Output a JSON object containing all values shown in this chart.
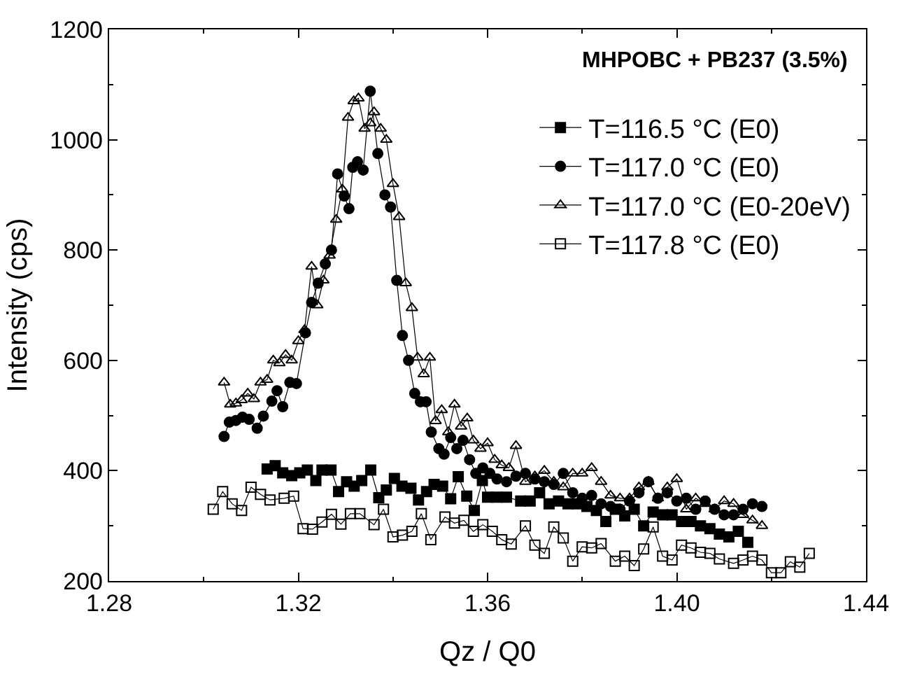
{
  "chart_data": {
    "type": "line",
    "xlabel": "Qz / Q0",
    "ylabel": "Intensity (cps)",
    "annotations": [
      "MHPOBC + PB237 (3.5%)"
    ],
    "xlim": [
      1.28,
      1.44
    ],
    "xticks": [
      {
        "value": 1.28,
        "label": "1.28"
      },
      {
        "value": 1.32,
        "label": "1.32"
      },
      {
        "value": 1.36,
        "label": "1.36"
      },
      {
        "value": 1.4,
        "label": "1.40"
      },
      {
        "value": 1.44,
        "label": "1.44"
      }
    ],
    "ylim": [
      200,
      1200
    ],
    "yticks": [
      200,
      400,
      600,
      800,
      1000,
      1200
    ],
    "legend": "top right",
    "line_style": "solid",
    "series": [
      {
        "name": "T=116.5 °C (E0)",
        "color": "#000000",
        "marker": "square",
        "x": [
          1.3134,
          1.3151,
          1.3167,
          1.3186,
          1.3203,
          1.3219,
          1.3237,
          1.325,
          1.3269,
          1.3285,
          1.3302,
          1.3318,
          1.3334,
          1.3353,
          1.337,
          1.3386,
          1.3403,
          1.3419,
          1.3438,
          1.3454,
          1.3471,
          1.3487,
          1.3505,
          1.3522,
          1.3538,
          1.3556,
          1.3572,
          1.3589,
          1.36,
          1.362,
          1.364,
          1.367,
          1.369,
          1.371,
          1.373,
          1.375,
          1.377,
          1.379,
          1.381,
          1.383,
          1.385,
          1.387,
          1.389,
          1.391,
          1.393,
          1.395,
          1.397,
          1.399,
          1.401,
          1.403,
          1.405,
          1.407,
          1.409,
          1.411,
          1.413,
          1.415
        ],
        "values": [
          403,
          409,
          396,
          391,
          396,
          401,
          382,
          401,
          401,
          362,
          380,
          372,
          382,
          401,
          351,
          365,
          386,
          372,
          368,
          347,
          362,
          375,
          372,
          349,
          389,
          354,
          328,
          382,
          352,
          352,
          352,
          345,
          345,
          360,
          340,
          345,
          340,
          340,
          335,
          328,
          308,
          330,
          318,
          330,
          300,
          325,
          320,
          320,
          308,
          308,
          300,
          295,
          285,
          280,
          290,
          270
        ]
      },
      {
        "name": "T=117.0 °C (E0)",
        "color": "#000000",
        "marker": "circle",
        "x": [
          1.3043,
          1.3054,
          1.3068,
          1.3082,
          1.3096,
          1.3113,
          1.3126,
          1.3144,
          1.3155,
          1.3167,
          1.3182,
          1.3196,
          1.3215,
          1.3228,
          1.3242,
          1.3257,
          1.327,
          1.3283,
          1.3297,
          1.3307,
          1.3315,
          1.3325,
          1.3337,
          1.3352,
          1.3368,
          1.3383,
          1.3395,
          1.3408,
          1.342,
          1.3433,
          1.3446,
          1.3458,
          1.347,
          1.3481,
          1.3497,
          1.3508,
          1.3522,
          1.3535,
          1.3548,
          1.3562,
          1.3575,
          1.359,
          1.3605,
          1.362,
          1.364,
          1.366,
          1.368,
          1.37,
          1.372,
          1.374,
          1.376,
          1.378,
          1.38,
          1.382,
          1.384,
          1.386,
          1.388,
          1.39,
          1.392,
          1.394,
          1.396,
          1.398,
          1.4,
          1.402,
          1.404,
          1.406,
          1.408,
          1.41,
          1.412,
          1.414,
          1.416,
          1.418
        ],
        "values": [
          462,
          488,
          491,
          497,
          493,
          477,
          499,
          526,
          545,
          516,
          560,
          558,
          650,
          705,
          740,
          775,
          800,
          938,
          898,
          875,
          950,
          960,
          945,
          1088,
          975,
          900,
          878,
          745,
          645,
          600,
          540,
          525,
          525,
          470,
          440,
          430,
          460,
          440,
          455,
          420,
          395,
          405,
          395,
          385,
          380,
          390,
          395,
          385,
          380,
          375,
          395,
          360,
          350,
          355,
          340,
          335,
          330,
          345,
          360,
          380,
          350,
          360,
          345,
          350,
          330,
          345,
          330,
          320,
          320,
          330,
          340,
          335
        ]
      },
      {
        "name": "T=117.0 °C (E0-20eV)",
        "color": "#000000",
        "marker": "triangle-open",
        "x": [
          1.3043,
          1.3056,
          1.3068,
          1.308,
          1.3093,
          1.3106,
          1.312,
          1.3134,
          1.3147,
          1.316,
          1.3173,
          1.3186,
          1.32,
          1.3213,
          1.3228,
          1.324,
          1.3253,
          1.3266,
          1.328,
          1.3293,
          1.3305,
          1.3317,
          1.3327,
          1.334,
          1.3352,
          1.336,
          1.3374,
          1.3386,
          1.34,
          1.3413,
          1.3427,
          1.344,
          1.3452,
          1.3465,
          1.3478,
          1.349,
          1.3503,
          1.3517,
          1.353,
          1.3544,
          1.3557,
          1.357,
          1.3585,
          1.36,
          1.3615,
          1.363,
          1.3645,
          1.366,
          1.368,
          1.37,
          1.372,
          1.374,
          1.376,
          1.378,
          1.38,
          1.382,
          1.384,
          1.386,
          1.388,
          1.39,
          1.392,
          1.394,
          1.396,
          1.398,
          1.4,
          1.402,
          1.404,
          1.406,
          1.408,
          1.41,
          1.412,
          1.414,
          1.416,
          1.418
        ],
        "values": [
          560,
          520,
          522,
          528,
          540,
          530,
          560,
          565,
          600,
          595,
          610,
          600,
          635,
          655,
          770,
          700,
          745,
          790,
          855,
          910,
          1040,
          1070,
          1075,
          1020,
          1030,
          1050,
          1020,
          1000,
          920,
          860,
          740,
          695,
          605,
          575,
          605,
          490,
          510,
          470,
          520,
          480,
          495,
          455,
          440,
          450,
          420,
          410,
          405,
          445,
          380,
          390,
          400,
          380,
          370,
          395,
          395,
          405,
          380,
          355,
          350,
          350,
          370,
          380,
          350,
          370,
          385,
          330,
          350,
          340,
          330,
          345,
          340,
          320,
          310,
          300
        ]
      },
      {
        "name": "T=117.8 °C (E0)",
        "color": "#000000",
        "marker": "square-open",
        "x": [
          1.302,
          1.304,
          1.306,
          1.308,
          1.31,
          1.312,
          1.314,
          1.317,
          1.319,
          1.321,
          1.323,
          1.325,
          1.327,
          1.329,
          1.331,
          1.333,
          1.336,
          1.338,
          1.34,
          1.342,
          1.344,
          1.346,
          1.348,
          1.351,
          1.353,
          1.355,
          1.357,
          1.359,
          1.361,
          1.363,
          1.365,
          1.368,
          1.37,
          1.372,
          1.374,
          1.376,
          1.378,
          1.38,
          1.382,
          1.384,
          1.387,
          1.389,
          1.391,
          1.393,
          1.395,
          1.397,
          1.399,
          1.401,
          1.403,
          1.405,
          1.407,
          1.409,
          1.412,
          1.414,
          1.416,
          1.418,
          1.42,
          1.422,
          1.424,
          1.426,
          1.428
        ],
        "values": [
          330,
          362,
          340,
          328,
          370,
          357,
          347,
          350,
          354,
          295,
          294,
          307,
          321,
          303,
          322,
          322,
          302,
          330,
          280,
          283,
          290,
          322,
          275,
          316,
          305,
          310,
          290,
          302,
          290,
          275,
          267,
          300,
          265,
          250,
          298,
          278,
          236,
          262,
          260,
          268,
          236,
          245,
          228,
          258,
          298,
          245,
          238,
          265,
          260,
          252,
          250,
          240,
          232,
          238,
          245,
          238,
          215,
          215,
          235,
          225,
          250
        ]
      }
    ]
  }
}
